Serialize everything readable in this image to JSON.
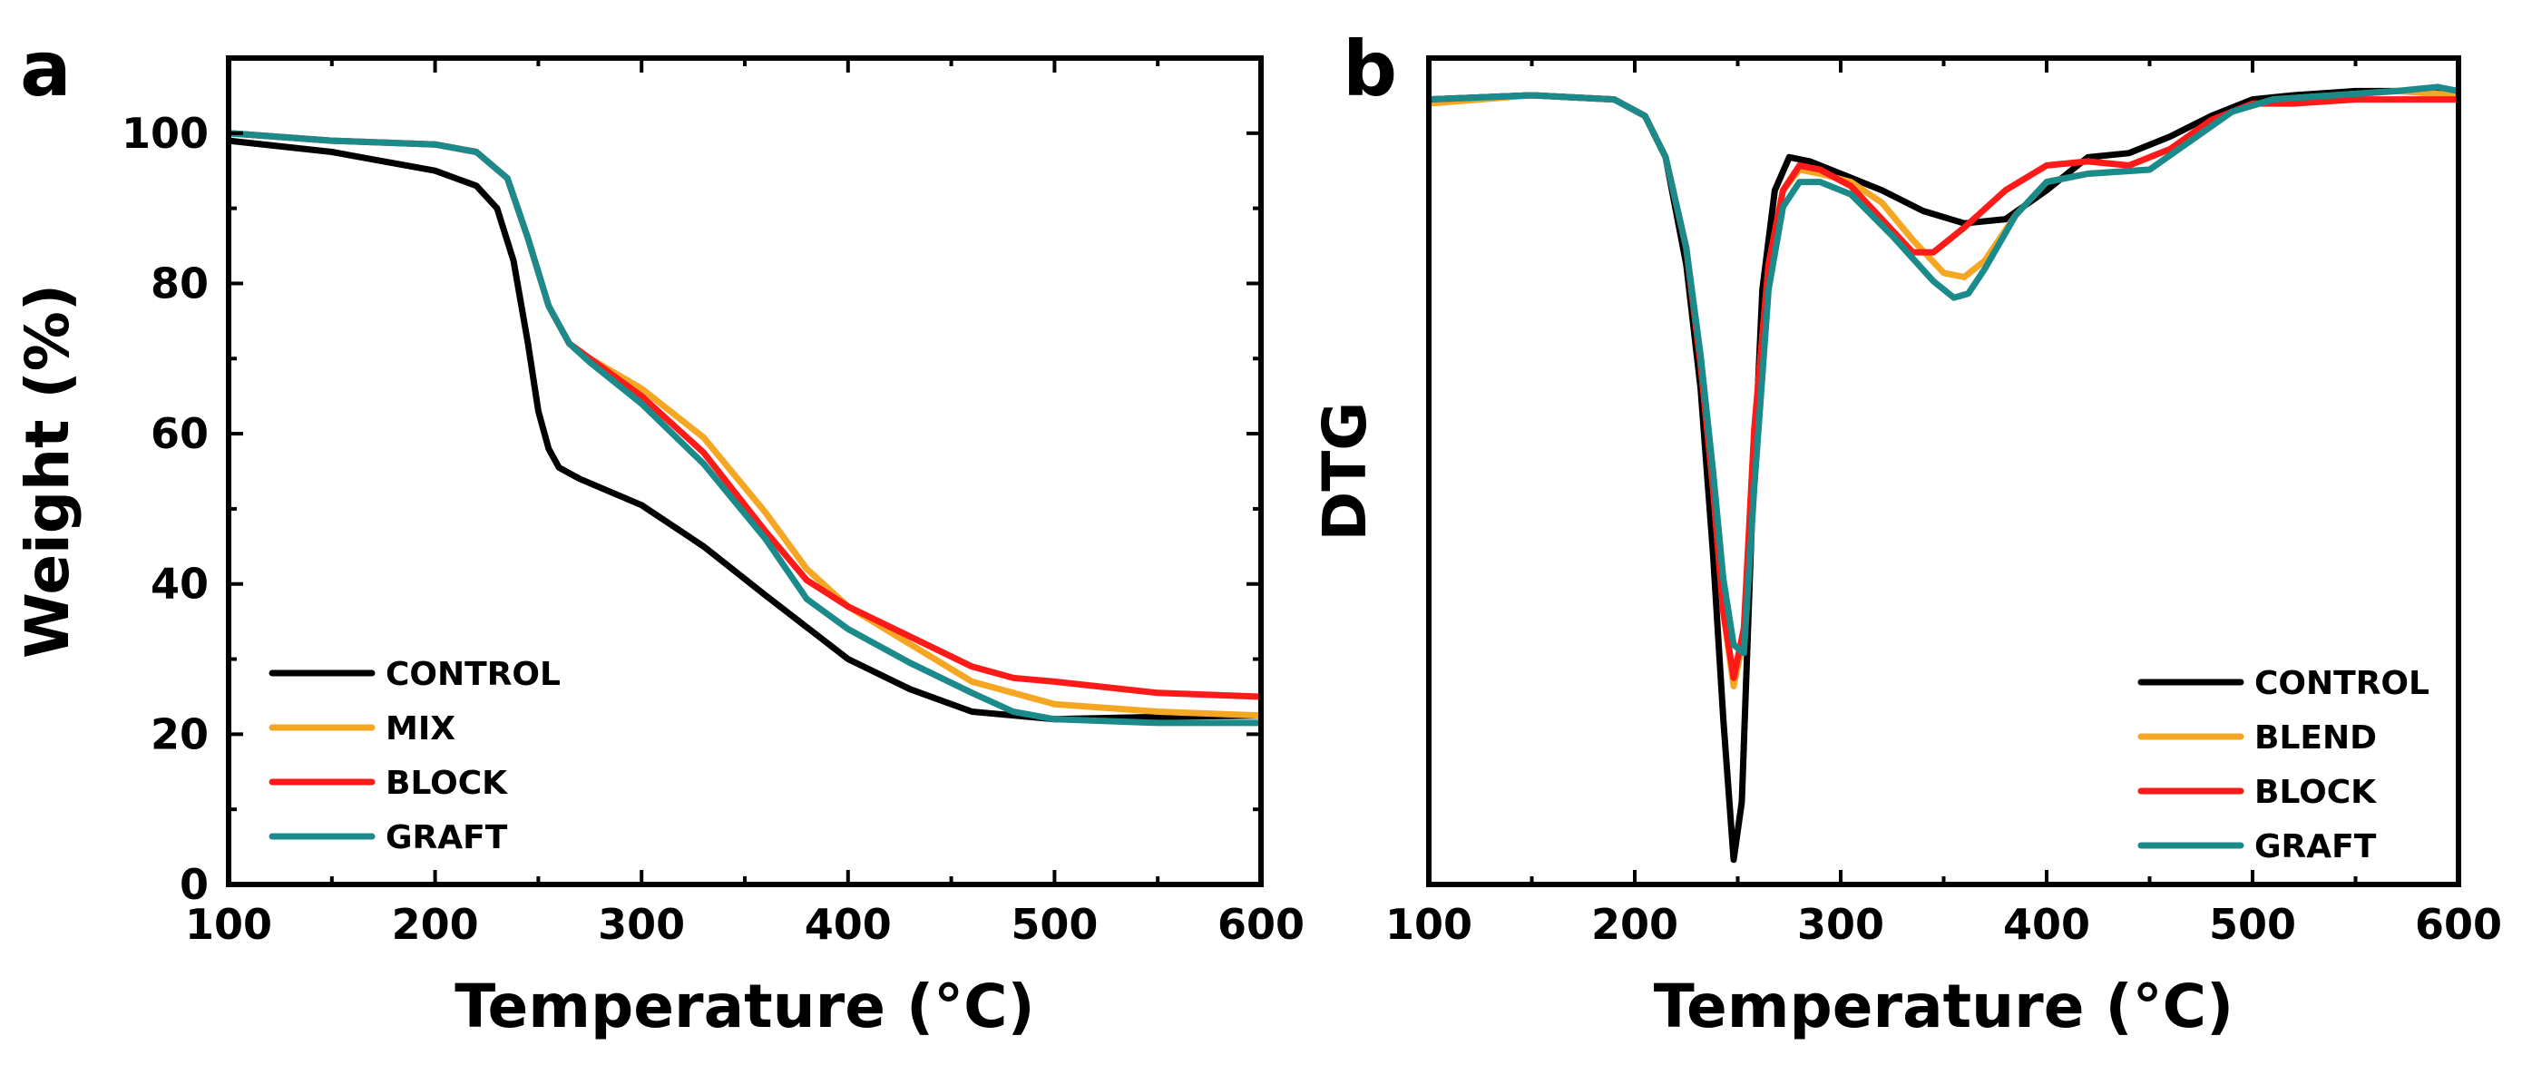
{
  "chart_data": [
    {
      "panel": "a",
      "type": "line",
      "xlabel": "Temperature (°C)",
      "ylabel": "Weight (%)",
      "xlim": [
        100,
        600
      ],
      "ylim": [
        0,
        110
      ],
      "xticks": [
        100,
        200,
        300,
        400,
        500,
        600
      ],
      "yticks": [
        0,
        20,
        40,
        60,
        80,
        100
      ],
      "legend_position": "bottom-left",
      "series": [
        {
          "name": "CONTROL",
          "color": "#000000",
          "x": [
            100,
            150,
            200,
            220,
            230,
            238,
            245,
            250,
            255,
            260,
            270,
            300,
            330,
            360,
            400,
            430,
            460,
            500,
            550,
            600
          ],
          "y": [
            99,
            97.5,
            95,
            93,
            90,
            83,
            72,
            63,
            58,
            55.5,
            54,
            50.5,
            45,
            38.5,
            30,
            26,
            23,
            22,
            22.3,
            22.5
          ]
        },
        {
          "name": "MIX",
          "color": "#f5a623",
          "x": [
            100,
            150,
            200,
            220,
            235,
            245,
            255,
            265,
            275,
            300,
            330,
            360,
            380,
            400,
            430,
            460,
            500,
            550,
            600
          ],
          "y": [
            100,
            99,
            98.5,
            97.5,
            94,
            86,
            77,
            72,
            70,
            66,
            59.5,
            49.5,
            42,
            37,
            32,
            27,
            24,
            23,
            22.5
          ]
        },
        {
          "name": "BLOCK",
          "color": "#ff1a1a",
          "x": [
            100,
            150,
            200,
            220,
            235,
            245,
            255,
            265,
            275,
            300,
            330,
            360,
            380,
            400,
            430,
            460,
            480,
            500,
            550,
            600
          ],
          "y": [
            100,
            99,
            98.5,
            97.5,
            94,
            86,
            77,
            72,
            70,
            65,
            57.5,
            47,
            40.5,
            37,
            33,
            29,
            27.5,
            27,
            25.5,
            25
          ]
        },
        {
          "name": "GRAFT",
          "color": "#1a8a8a",
          "x": [
            100,
            150,
            200,
            220,
            235,
            245,
            255,
            265,
            275,
            300,
            330,
            360,
            380,
            400,
            430,
            460,
            480,
            500,
            550,
            600
          ],
          "y": [
            100,
            99,
            98.5,
            97.5,
            94,
            86,
            77,
            72,
            69.5,
            64,
            56,
            46,
            38,
            34,
            29.5,
            25.5,
            23,
            22,
            21.5,
            21.5
          ]
        }
      ]
    },
    {
      "panel": "b",
      "type": "line",
      "xlabel": "Temperature (°C)",
      "ylabel": "DTG",
      "xlim": [
        100,
        600
      ],
      "ylim": [
        0,
        100
      ],
      "xticks": [
        100,
        200,
        300,
        400,
        500,
        600
      ],
      "yticks": [],
      "legend_position": "bottom-right",
      "series": [
        {
          "name": "CONTROL",
          "color": "#000000",
          "x": [
            100,
            150,
            190,
            205,
            215,
            225,
            232,
            238,
            243,
            248,
            252,
            257,
            262,
            268,
            275,
            285,
            300,
            320,
            340,
            360,
            380,
            400,
            420,
            440,
            460,
            480,
            500,
            520,
            550,
            580,
            600
          ],
          "y": [
            95,
            95.5,
            95,
            93,
            88,
            75,
            60,
            40,
            20,
            3,
            10,
            45,
            72,
            84,
            88,
            87.5,
            86,
            84,
            81.5,
            80,
            80.5,
            84,
            88,
            88.5,
            90.5,
            93,
            95,
            95.5,
            96,
            96,
            96
          ]
        },
        {
          "name": "BLEND",
          "color": "#f5a623",
          "x": [
            100,
            150,
            190,
            205,
            215,
            225,
            232,
            238,
            243,
            248,
            253,
            258,
            265,
            272,
            280,
            290,
            305,
            320,
            335,
            350,
            360,
            370,
            385,
            400,
            420,
            450,
            470,
            490,
            510,
            540,
            570,
            600
          ],
          "y": [
            94.5,
            95.5,
            95,
            93,
            88,
            77,
            63,
            48,
            33,
            24,
            30,
            55,
            75,
            84,
            86.5,
            86,
            85,
            82.5,
            78,
            74,
            73.5,
            75.5,
            81,
            85,
            86,
            86.5,
            90,
            93.5,
            95,
            95.5,
            96,
            95.5
          ]
        },
        {
          "name": "BLOCK",
          "color": "#ff1a1a",
          "x": [
            100,
            150,
            190,
            205,
            215,
            225,
            232,
            238,
            243,
            248,
            253,
            258,
            265,
            272,
            280,
            290,
            305,
            320,
            335,
            345,
            360,
            380,
            400,
            420,
            440,
            460,
            480,
            500,
            520,
            550,
            580,
            600
          ],
          "y": [
            95,
            95.5,
            95,
            93,
            88,
            77,
            63,
            48,
            33,
            25,
            31,
            55,
            75,
            84,
            87,
            86.5,
            84.5,
            80.5,
            76.5,
            76.5,
            79.5,
            84,
            87,
            87.5,
            87,
            89,
            92.5,
            94.5,
            94.5,
            95,
            95,
            95
          ]
        },
        {
          "name": "GRAFT",
          "color": "#1a8a8a",
          "x": [
            100,
            150,
            190,
            205,
            215,
            225,
            232,
            238,
            243,
            248,
            253,
            258,
            265,
            272,
            280,
            290,
            305,
            325,
            345,
            355,
            362,
            370,
            385,
            400,
            420,
            450,
            470,
            490,
            510,
            540,
            570,
            590,
            600
          ],
          "y": [
            95,
            95.5,
            95,
            93,
            88,
            77,
            64,
            50,
            37,
            29,
            28,
            48,
            72,
            82,
            85,
            85,
            83.5,
            78.5,
            73,
            71,
            71.5,
            74.5,
            81,
            85,
            86,
            86.5,
            90,
            93.5,
            95,
            95.5,
            96,
            96.5,
            96
          ]
        }
      ]
    }
  ]
}
